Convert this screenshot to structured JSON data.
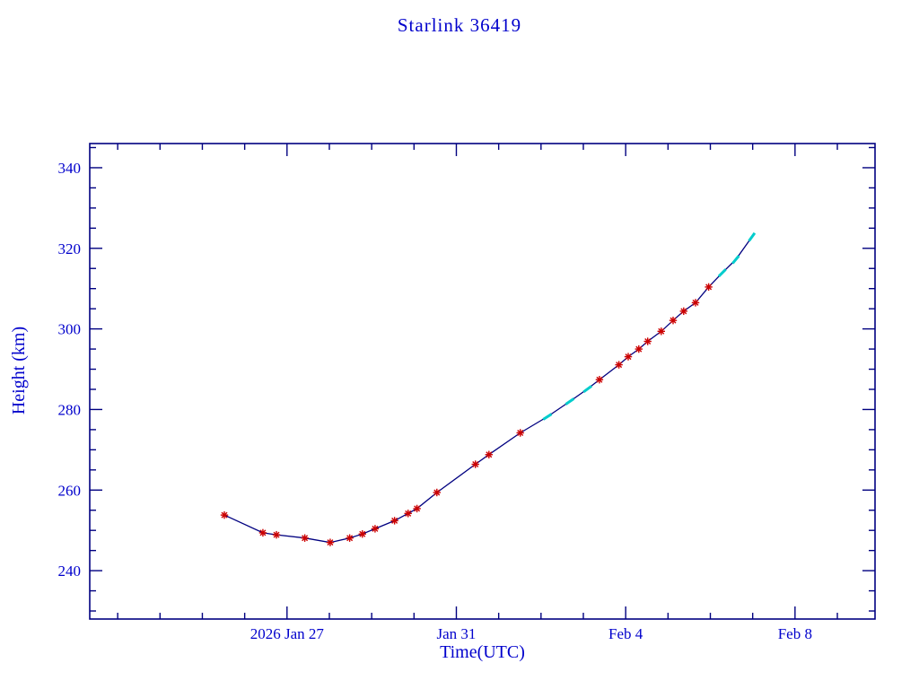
{
  "title": "Starlink 36419",
  "colors": {
    "background": "#ffffff",
    "text": "#0000cc",
    "frame": "#000080",
    "line": "#000080",
    "marker_red": "#cc0000",
    "marker_cyan": "#00cccc"
  },
  "chart_data": {
    "type": "line",
    "title": "Starlink 36419",
    "xlabel": "Time(UTC)",
    "ylabel": "Height (km)",
    "x_unit": "days since 2026 Jan 25 00:00 UTC",
    "xlim": [
      -2.66,
      15.89
    ],
    "ylim": [
      228,
      346
    ],
    "grid": false,
    "legend": "none",
    "x_major_ticks": [
      {
        "pos": 2,
        "label": "2026 Jan 27"
      },
      {
        "pos": 6,
        "label": "Jan 31"
      },
      {
        "pos": 10,
        "label": "Feb 4"
      },
      {
        "pos": 14,
        "label": "Feb 8"
      }
    ],
    "x_minor_step": 1,
    "y_major_ticks": [
      {
        "pos": 240,
        "label": "240"
      },
      {
        "pos": 260,
        "label": "260"
      },
      {
        "pos": 280,
        "label": "280"
      },
      {
        "pos": 300,
        "label": "300"
      },
      {
        "pos": 320,
        "label": "320"
      },
      {
        "pos": 340,
        "label": "340"
      }
    ],
    "y_minor_step": 5,
    "points": [
      {
        "x": 0.52,
        "y": 253.8,
        "marker": "red-star"
      },
      {
        "x": 1.43,
        "y": 249.4,
        "marker": "red-star"
      },
      {
        "x": 1.75,
        "y": 248.9,
        "marker": "red-star"
      },
      {
        "x": 2.42,
        "y": 248.1,
        "marker": "red-star"
      },
      {
        "x": 3.02,
        "y": 247.0,
        "marker": "red-star"
      },
      {
        "x": 3.48,
        "y": 248.1,
        "marker": "red-star"
      },
      {
        "x": 3.78,
        "y": 249.1,
        "marker": "red-star"
      },
      {
        "x": 4.08,
        "y": 250.4,
        "marker": "red-star"
      },
      {
        "x": 4.54,
        "y": 252.4,
        "marker": "red-star"
      },
      {
        "x": 4.86,
        "y": 254.2,
        "marker": "red-star"
      },
      {
        "x": 5.07,
        "y": 255.4,
        "marker": "red-star"
      },
      {
        "x": 5.54,
        "y": 259.4,
        "marker": "red-star"
      },
      {
        "x": 6.45,
        "y": 266.4,
        "marker": "red-star"
      },
      {
        "x": 6.77,
        "y": 268.8,
        "marker": "red-star"
      },
      {
        "x": 7.51,
        "y": 274.2,
        "marker": "red-star"
      },
      {
        "x": 8.15,
        "y": 278.2,
        "marker": "cyan-dash"
      },
      {
        "x": 8.68,
        "y": 282.0,
        "marker": "cyan-dash"
      },
      {
        "x": 9.1,
        "y": 285.1,
        "marker": "cyan-dash"
      },
      {
        "x": 9.38,
        "y": 287.4,
        "marker": "red-star"
      },
      {
        "x": 9.84,
        "y": 291.1,
        "marker": "red-star"
      },
      {
        "x": 10.06,
        "y": 293.1,
        "marker": "red-star"
      },
      {
        "x": 10.31,
        "y": 295.0,
        "marker": "red-star"
      },
      {
        "x": 10.52,
        "y": 296.9,
        "marker": "red-star"
      },
      {
        "x": 10.84,
        "y": 299.4,
        "marker": "red-star"
      },
      {
        "x": 11.12,
        "y": 302.1,
        "marker": "red-star"
      },
      {
        "x": 11.37,
        "y": 304.4,
        "marker": "red-star"
      },
      {
        "x": 11.65,
        "y": 306.5,
        "marker": "red-star"
      },
      {
        "x": 11.96,
        "y": 310.4,
        "marker": "red-star"
      },
      {
        "x": 12.28,
        "y": 313.9,
        "marker": "cyan-dash"
      },
      {
        "x": 12.6,
        "y": 317.2,
        "marker": "cyan-dash"
      },
      {
        "x": 12.98,
        "y": 322.8,
        "marker": "cyan-dash"
      }
    ]
  }
}
